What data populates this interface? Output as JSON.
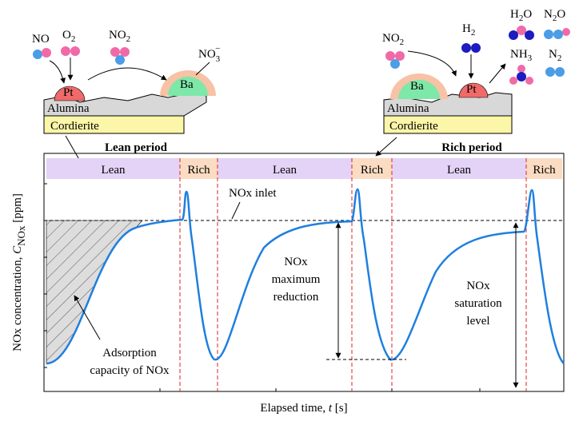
{
  "lean_panel": {
    "no": "NO",
    "o2": {
      "main": "O",
      "sub": "2"
    },
    "no2": {
      "main": "NO",
      "sub": "2"
    },
    "no3": {
      "main": "NO",
      "sub": "3",
      "sup": "−"
    },
    "pt": "Pt",
    "ba": "Ba",
    "alumina": "Alumina",
    "cordierite": "Cordierite",
    "period": "Lean period"
  },
  "rich_panel": {
    "no2": {
      "main": "NO",
      "sub": "2"
    },
    "h2": {
      "main": "H",
      "sub": "2"
    },
    "h2o": {
      "main": "H",
      "sub": "2",
      "end": "O"
    },
    "n2o": {
      "main": "N",
      "sub": "2",
      "end": "O"
    },
    "nh3": {
      "main": "NH",
      "sub": "3"
    },
    "n2": {
      "main": "N",
      "sub": "2"
    },
    "pt": "Pt",
    "ba": "Ba",
    "alumina": "Alumina",
    "cordierite": "Cordierite",
    "period": "Rich period"
  },
  "phases": [
    "Lean",
    "Rich",
    "Lean",
    "Rich",
    "Lean",
    "Rich"
  ],
  "annotations": {
    "inlet": "NOx inlet",
    "max_reduction": [
      "NOx",
      "maximum",
      "reduction"
    ],
    "saturation": [
      "NOx",
      "saturation",
      "level"
    ],
    "adsorption": [
      "Adsorption",
      "capacity of NOx"
    ]
  },
  "axes": {
    "y_label": {
      "text": "NOx concentration, ",
      "symbol": "C",
      "subscript": "NOx",
      "unit": " [ppm]"
    },
    "x_label": {
      "text": "Elapsed time, ",
      "symbol": "t",
      "unit": " [s]"
    }
  }
}
